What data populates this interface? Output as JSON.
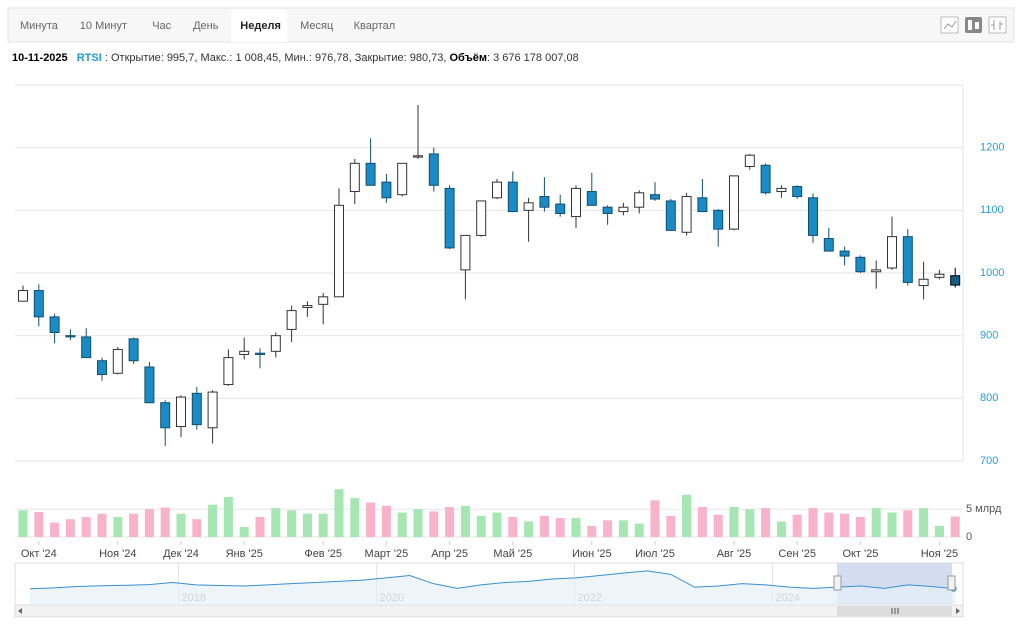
{
  "tabs": [
    "Минута",
    "10 Минут",
    "Час",
    "День",
    "Неделя",
    "Месяц",
    "Квартал"
  ],
  "active_tab": 4,
  "info": {
    "date": "10-11-2025",
    "ticker": "RTSI",
    "text": ": Открытие: 995,7, Макс.: 1 008,45, Мин.: 976,78, Закрытие: 980,73,",
    "volume_label": "Объём",
    "volume_value": ": 3 676 178 007,08"
  },
  "chart_data": {
    "type": "candlestick",
    "categories": [
      null,
      "Окт '24",
      null,
      null,
      null,
      null,
      "Ноя '24",
      null,
      null,
      null,
      "Дек '24",
      null,
      null,
      null,
      "Янв '25",
      null,
      null,
      null,
      null,
      "Фев '25",
      null,
      null,
      null,
      "Март '25",
      null,
      null,
      null,
      "Апр '25",
      null,
      null,
      null,
      "Май '25",
      null,
      null,
      null,
      null,
      "Июн '25",
      null,
      null,
      null,
      "Июл '25",
      null,
      null,
      null,
      null,
      "Авг '25",
      null,
      null,
      null,
      "Сен '25",
      null,
      null,
      null,
      "Окт '25",
      null,
      null,
      null,
      null,
      "Ноя '25",
      null
    ],
    "open": [
      955,
      972,
      930,
      900,
      898,
      860,
      840,
      895,
      850,
      793,
      755,
      808,
      753,
      822,
      870,
      872,
      875,
      910,
      945,
      950,
      962,
      1130,
      1175,
      1145,
      1125,
      1185,
      1190,
      1135,
      1005,
      1060,
      1120,
      1145,
      1100,
      1122,
      1110,
      1090,
      1130,
      1105,
      1098,
      1105,
      1125,
      1115,
      1065,
      1120,
      1100,
      1070,
      1170,
      1172,
      1130,
      1138,
      1120,
      1055,
      1035,
      1025,
      1002,
      1008,
      1058,
      980,
      993,
      995.7
    ],
    "high": [
      980,
      982,
      935,
      910,
      912,
      865,
      882,
      897,
      858,
      797,
      805,
      818,
      813,
      878,
      897,
      880,
      905,
      948,
      955,
      968,
      1135,
      1182,
      1215,
      1158,
      1175,
      1268,
      1200,
      1140,
      1060,
      1115,
      1150,
      1162,
      1120,
      1153,
      1125,
      1140,
      1160,
      1108,
      1112,
      1132,
      1145,
      1118,
      1128,
      1150,
      1102,
      1155,
      1190,
      1175,
      1140,
      1140,
      1127,
      1072,
      1042,
      1028,
      1020,
      1090,
      1070,
      1018,
      1005,
      1008.45
    ],
    "low": [
      955,
      915,
      888,
      893,
      865,
      828,
      838,
      855,
      792,
      724,
      738,
      750,
      728,
      820,
      862,
      848,
      865,
      890,
      930,
      918,
      962,
      1110,
      1140,
      1112,
      1122,
      1182,
      1130,
      1038,
      958,
      1058,
      1118,
      1098,
      1050,
      1098,
      1090,
      1072,
      1108,
      1077,
      1092,
      1095,
      1115,
      1068,
      1060,
      1098,
      1042,
      1068,
      1165,
      1125,
      1120,
      1118,
      1048,
      1035,
      1012,
      1000,
      975,
      1005,
      980,
      958,
      990,
      976.78
    ],
    "close": [
      972,
      930,
      905,
      898,
      865,
      838,
      878,
      860,
      793,
      753,
      802,
      758,
      810,
      865,
      875,
      870,
      900,
      940,
      948,
      962,
      1108,
      1175,
      1140,
      1120,
      1175,
      1187,
      1140,
      1040,
      1060,
      1115,
      1145,
      1098,
      1112,
      1105,
      1095,
      1135,
      1108,
      1095,
      1105,
      1128,
      1118,
      1068,
      1122,
      1098,
      1070,
      1155,
      1188,
      1128,
      1135,
      1122,
      1060,
      1035,
      1027,
      1002,
      1005,
      1058,
      985,
      990,
      998,
      980.73
    ],
    "up_color": "#ffffff",
    "down_color": "#1a8bc4",
    "selected_color": "#0d5f8a",
    "ylim": [
      700,
      1300
    ],
    "yticks": [
      700,
      800,
      900,
      1000,
      1100,
      1200
    ],
    "grid": true,
    "volume": {
      "values": [
        4800000000,
        4500000000,
        2600000000,
        3200000000,
        3600000000,
        4200000000,
        3600000000,
        4200000000,
        5000000000,
        5300000000,
        4200000000,
        3200000000,
        5800000000,
        7200000000,
        1800000000,
        3600000000,
        5200000000,
        4800000000,
        4200000000,
        4200000000,
        8600000000,
        7000000000,
        6200000000,
        5600000000,
        4400000000,
        5000000000,
        4600000000,
        5400000000,
        5600000000,
        3800000000,
        4400000000,
        3600000000,
        2800000000,
        3800000000,
        3400000000,
        3400000000,
        2000000000,
        3000000000,
        3000000000,
        2400000000,
        6600000000,
        3800000000,
        7600000000,
        5400000000,
        4000000000,
        5400000000,
        5000000000,
        5200000000,
        2800000000,
        4000000000,
        5200000000,
        4400000000,
        4200000000,
        3600000000,
        5200000000,
        4400000000,
        4800000000,
        5200000000,
        2000000000,
        3676178007.08
      ],
      "up_color": "#a6e6b2",
      "down_color": "#f8b2ca",
      "ylim": [
        0,
        9000000000
      ],
      "yticks": [
        0,
        {
          "value": 5000000000,
          "label": "5 млрд"
        }
      ]
    },
    "navigator": {
      "values": [
        980,
        1020,
        1080,
        1110,
        1130,
        1160,
        1250,
        1150,
        1120,
        1100,
        1150,
        1200,
        1250,
        1300,
        1350,
        1450,
        1550,
        1200,
        1000,
        1150,
        1250,
        1300,
        1400,
        1450,
        1550,
        1650,
        1750,
        1600,
        1050,
        1100,
        1200,
        1150,
        1050,
        1000,
        1050,
        1100,
        1000,
        1150,
        1080,
        980
      ],
      "color": "#3a8fd0",
      "xlim": [
        2016.5,
        2025.85
      ],
      "ylim": [
        500,
        2000
      ],
      "xticks": [
        2018,
        2020,
        2022,
        2024
      ]
    }
  }
}
